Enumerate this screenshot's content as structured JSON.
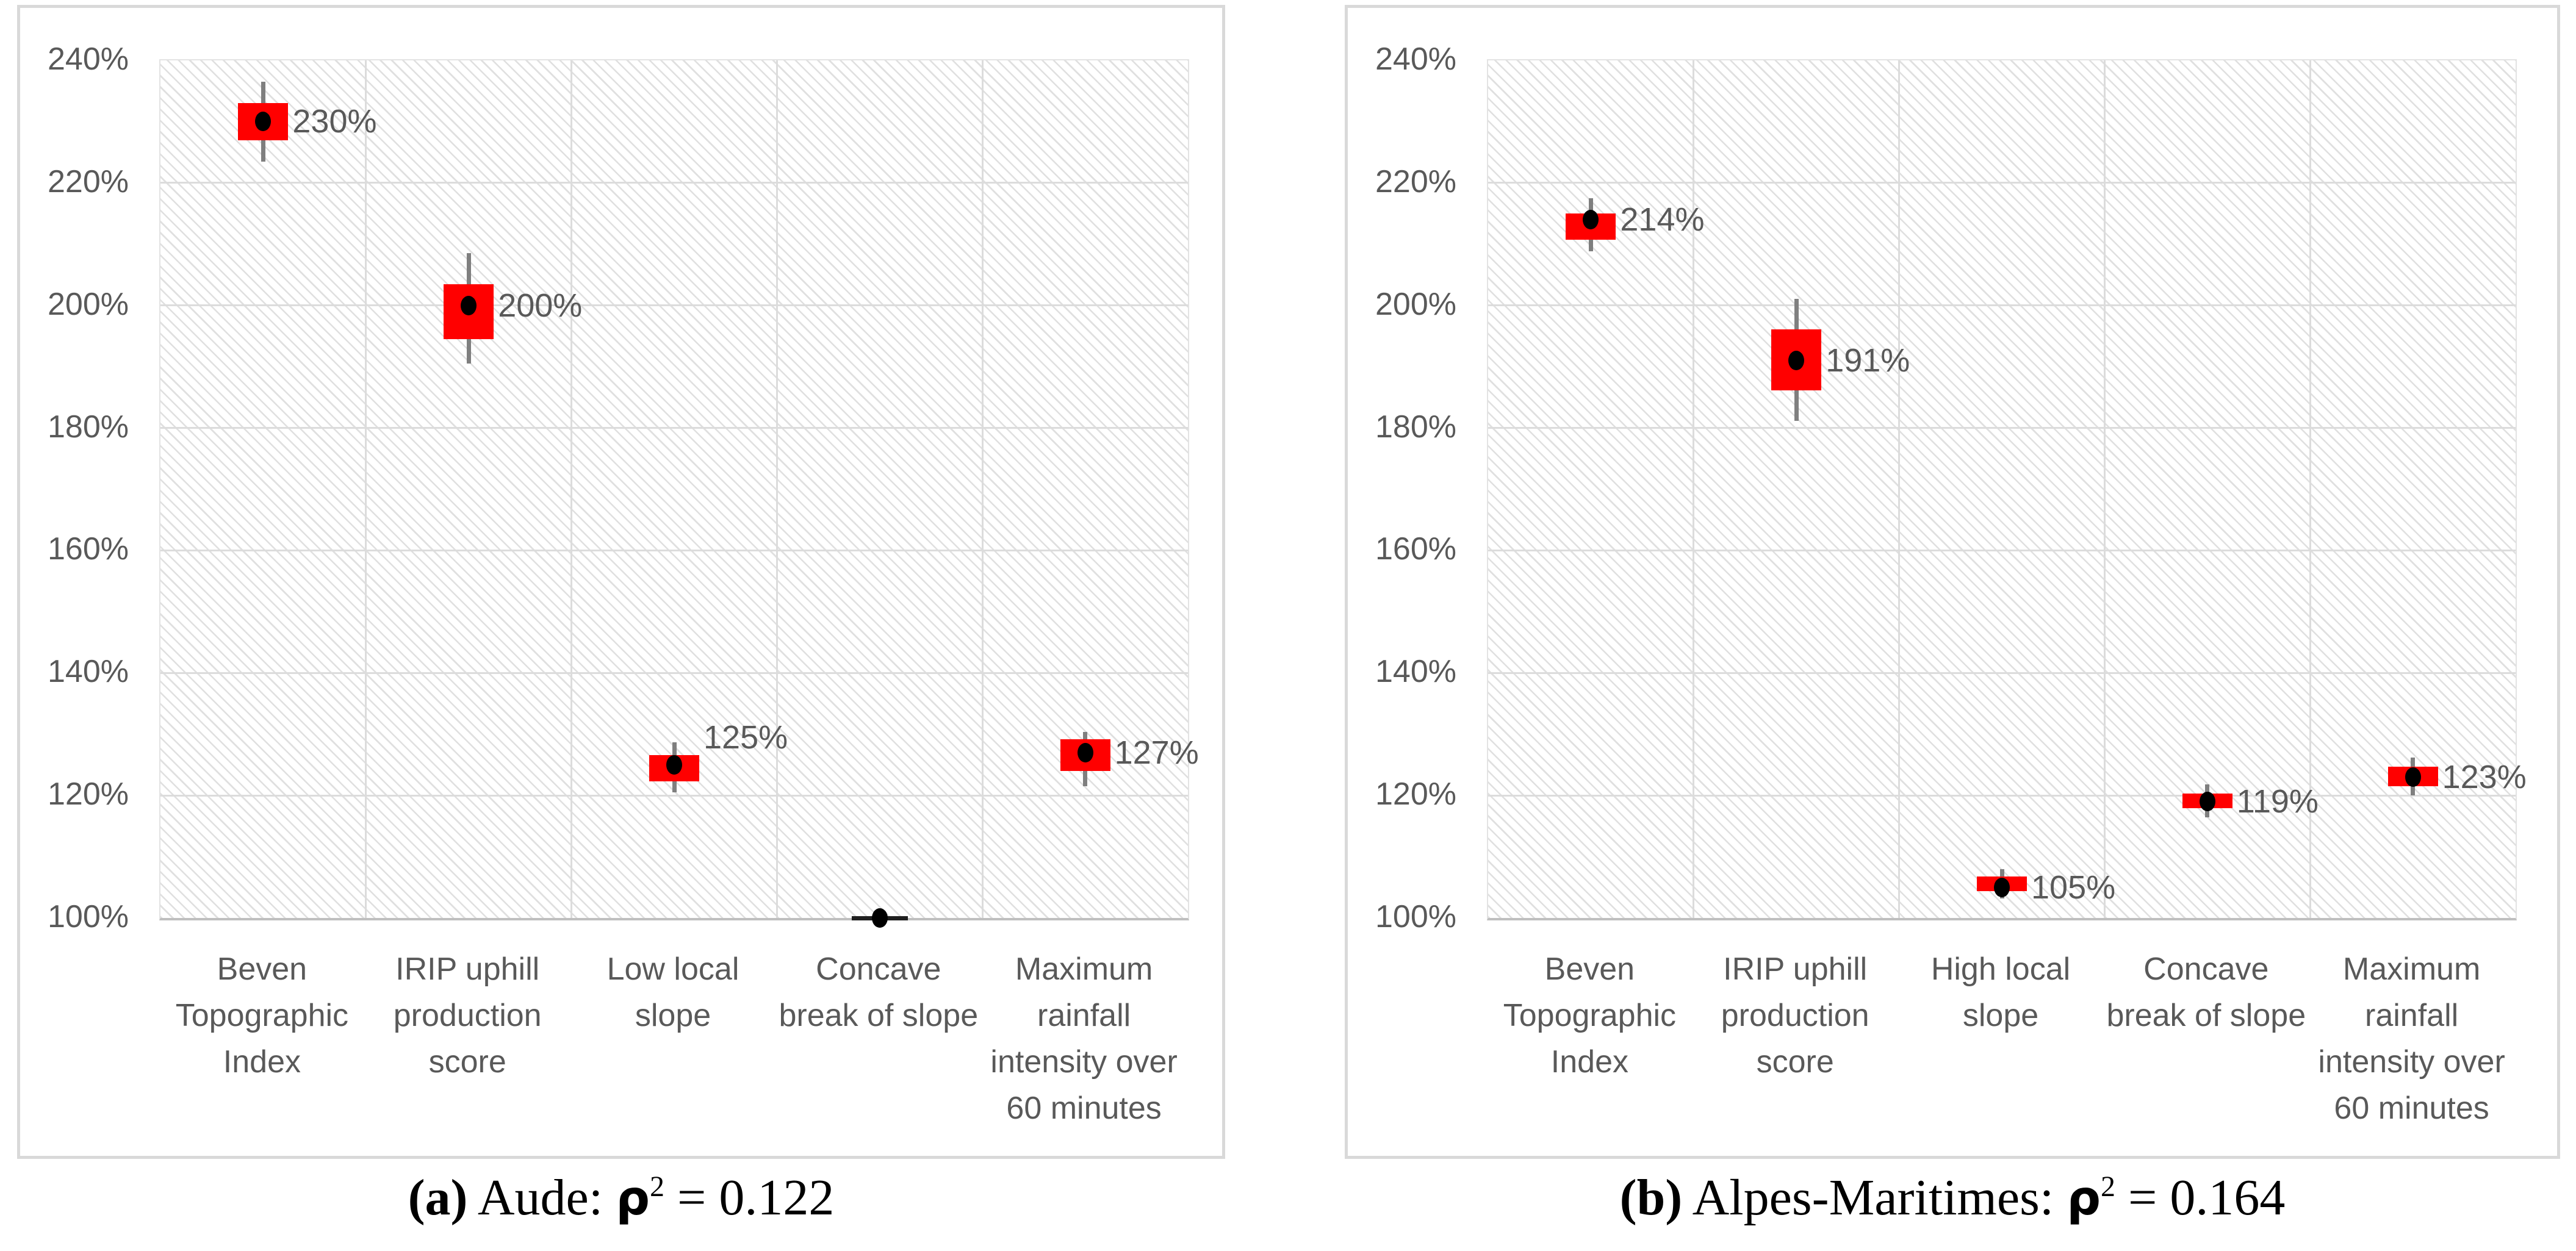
{
  "style": {
    "marker_fill": "#ff0000",
    "mean_dot_color": "#000000",
    "whisker_color": "#7f7f7f",
    "grid_color": "#dcdcdc",
    "axis_line_color": "#bfbfbf",
    "tick_text_color": "#595959",
    "data_label_color": "#595959",
    "panel_border_color": "#d9d9d9",
    "caption_color": "#000000"
  },
  "chart_data": [
    {
      "type": "scatter",
      "variant": "box-whisker",
      "title": "(a) Aude: ρ2 = 0.122",
      "caption": {
        "label": "(a)",
        "text": " Aude: ",
        "rho": "ρ",
        "sup": "2",
        "tail": " = 0.122"
      },
      "xlabel": "",
      "ylabel": "",
      "ylim": [
        100,
        240
      ],
      "grid": true,
      "legend": false,
      "yticks": [
        {
          "v": 100,
          "label": "100%"
        },
        {
          "v": 120,
          "label": "120%"
        },
        {
          "v": 140,
          "label": "140%"
        },
        {
          "v": 160,
          "label": "160%"
        },
        {
          "v": 180,
          "label": "180%"
        },
        {
          "v": 200,
          "label": "200%"
        },
        {
          "v": 220,
          "label": "220%"
        },
        {
          "v": 240,
          "label": "240%"
        }
      ],
      "categories": [
        "Beven Topographic Index",
        "IRIP uphill production score",
        "Low local slope",
        "Concave break of slope",
        "Maximum rainfall intensity over 60 minutes"
      ],
      "points": [
        {
          "category": "Beven Topographic Index",
          "value": 230,
          "label": "230%",
          "box": [
            227,
            233
          ],
          "whisker": [
            223.5,
            236.5
          ]
        },
        {
          "category": "IRIP uphill production score",
          "value": 200,
          "label": "200%",
          "box": [
            194.5,
            203.5
          ],
          "whisker": [
            190.5,
            208.5
          ]
        },
        {
          "category": "Low local slope",
          "value": 125,
          "label": "125%",
          "label_dy": 4.5,
          "box": [
            122.3,
            126.6
          ],
          "whisker": [
            120.5,
            128.7
          ]
        },
        {
          "category": "Concave break of slope",
          "value": 100,
          "label": null,
          "box": null,
          "whisker": null,
          "flat_dash": true
        },
        {
          "category": "Maximum rainfall intensity over 60 minutes",
          "value": 127,
          "label": "127%",
          "box": [
            124,
            129.2
          ],
          "whisker": [
            121.5,
            130.4
          ]
        }
      ]
    },
    {
      "type": "scatter",
      "variant": "box-whisker",
      "title": "(b) Alpes-Maritimes: ρ2 = 0.164",
      "caption": {
        "label": "(b)",
        "text": " Alpes-Maritimes: ",
        "rho": "ρ",
        "sup": "2",
        "tail": " = 0.164"
      },
      "xlabel": "",
      "ylabel": "",
      "ylim": [
        100,
        240
      ],
      "grid": true,
      "legend": false,
      "yticks": [
        {
          "v": 100,
          "label": "100%"
        },
        {
          "v": 120,
          "label": "120%"
        },
        {
          "v": 140,
          "label": "140%"
        },
        {
          "v": 160,
          "label": "160%"
        },
        {
          "v": 180,
          "label": "180%"
        },
        {
          "v": 200,
          "label": "200%"
        },
        {
          "v": 220,
          "label": "220%"
        },
        {
          "v": 240,
          "label": "240%"
        }
      ],
      "categories": [
        "Beven Topographic Index",
        "IRIP uphill production score",
        "High local slope",
        "Concave break of slope",
        "Maximum rainfall intensity over 60 minutes"
      ],
      "points": [
        {
          "category": "Beven Topographic Index",
          "value": 214,
          "label": "214%",
          "box": [
            210.7,
            215
          ],
          "whisker": [
            208.8,
            217.5
          ]
        },
        {
          "category": "IRIP uphill production score",
          "value": 191,
          "label": "191%",
          "box": [
            186.1,
            196.1
          ],
          "whisker": [
            181.2,
            201.1
          ]
        },
        {
          "category": "High local slope",
          "value": 105,
          "label": "105%",
          "box": [
            104.4,
            106.8
          ],
          "whisker": [
            103.2,
            108.0
          ]
        },
        {
          "category": "Concave break of slope",
          "value": 119,
          "label": "119%",
          "box": [
            117.9,
            120.3
          ],
          "whisker": [
            116.4,
            121.8
          ]
        },
        {
          "category": "Maximum rainfall intensity over 60 minutes",
          "value": 123,
          "label": "123%",
          "box": [
            121.5,
            124.7
          ],
          "whisker": [
            120.0,
            126.2
          ]
        }
      ]
    }
  ]
}
